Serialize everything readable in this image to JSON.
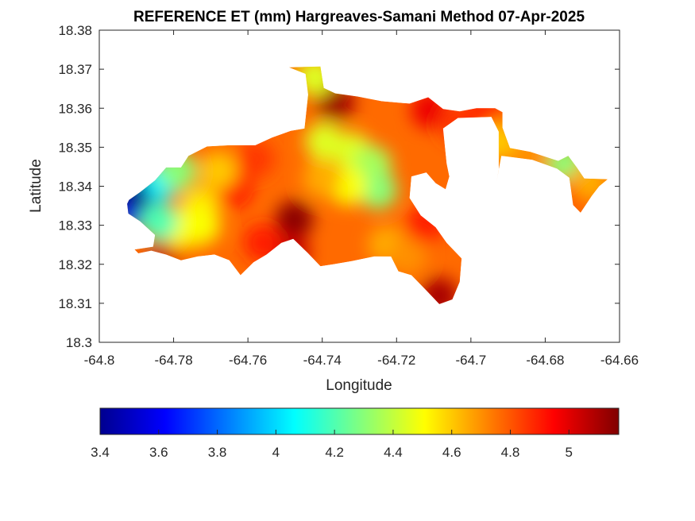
{
  "chart_data": {
    "type": "heatmap",
    "title": "REFERENCE ET (mm) Hargreaves-Samani Method  07-Apr-2025",
    "xlabel": "Longitude",
    "ylabel": "Latitude",
    "xlim": [
      -64.8,
      -64.66
    ],
    "ylim": [
      18.3,
      18.38
    ],
    "x_ticks": [
      "-64.8",
      "-64.78",
      "-64.76",
      "-64.74",
      "-64.72",
      "-64.7",
      "-64.68",
      "-64.66"
    ],
    "y_ticks": [
      "18.3",
      "18.31",
      "18.32",
      "18.33",
      "18.34",
      "18.35",
      "18.36",
      "18.37",
      "18.38"
    ],
    "colormap": "jet",
    "colorbar": {
      "placement": "bottom",
      "range": [
        3.4,
        5.17
      ],
      "ticks": [
        "3.4",
        "3.6",
        "3.8",
        "4",
        "4.2",
        "4.4",
        "4.6",
        "4.8",
        "5"
      ]
    },
    "colormap_stops": [
      "#00008f",
      "#0000ff",
      "#0080ff",
      "#00ffff",
      "#80ff80",
      "#ffff00",
      "#ff8000",
      "#ff0000",
      "#800000"
    ],
    "region_outline": [
      [
        -64.792,
        18.3365
      ],
      [
        -64.789,
        18.3385
      ],
      [
        -64.785,
        18.3415
      ],
      [
        -64.782,
        18.3448
      ],
      [
        -64.778,
        18.3448
      ],
      [
        -64.776,
        18.3478
      ],
      [
        -64.771,
        18.3502
      ],
      [
        -64.765,
        18.3505
      ],
      [
        -64.758,
        18.3505
      ],
      [
        -64.7535,
        18.3525
      ],
      [
        -64.7485,
        18.3542
      ],
      [
        -64.7448,
        18.3548
      ],
      [
        -64.7438,
        18.3635
      ],
      [
        -64.7445,
        18.3688
      ],
      [
        -64.749,
        18.3705
      ],
      [
        -64.7405,
        18.3707
      ],
      [
        -64.7396,
        18.3652
      ],
      [
        -64.7365,
        18.3638
      ],
      [
        -64.7305,
        18.363
      ],
      [
        -64.724,
        18.3618
      ],
      [
        -64.7165,
        18.3612
      ],
      [
        -64.7115,
        18.3628
      ],
      [
        -64.7075,
        18.3598
      ],
      [
        -64.703,
        18.3592
      ],
      [
        -64.6985,
        18.36
      ],
      [
        -64.6935,
        18.36
      ],
      [
        -64.6915,
        18.359
      ],
      [
        -64.6915,
        18.355
      ],
      [
        -64.6895,
        18.3498
      ],
      [
        -64.684,
        18.3488
      ],
      [
        -64.6765,
        18.3465
      ],
      [
        -64.6738,
        18.3478
      ],
      [
        -64.6715,
        18.3448
      ],
      [
        -64.6695,
        18.342
      ],
      [
        -64.6632,
        18.3418
      ],
      [
        -64.6655,
        18.34
      ],
      [
        -64.6675,
        18.3375
      ],
      [
        -64.6705,
        18.3332
      ],
      [
        -64.6725,
        18.3352
      ],
      [
        -64.6735,
        18.3422
      ],
      [
        -64.6768,
        18.3445
      ],
      [
        -64.6835,
        18.3468
      ],
      [
        -64.6918,
        18.3478
      ],
      [
        -64.6932,
        18.3408
      ],
      [
        -64.6925,
        18.344
      ],
      [
        -64.6925,
        18.354
      ],
      [
        -64.6945,
        18.3578
      ],
      [
        -64.7035,
        18.3575
      ],
      [
        -64.7075,
        18.3548
      ],
      [
        -64.7065,
        18.3458
      ],
      [
        -64.7058,
        18.3425
      ],
      [
        -64.7068,
        18.3392
      ],
      [
        -64.7095,
        18.3408
      ],
      [
        -64.712,
        18.3435
      ],
      [
        -64.716,
        18.3425
      ],
      [
        -64.7165,
        18.337
      ],
      [
        -64.7135,
        18.3325
      ],
      [
        -64.7095,
        18.3295
      ],
      [
        -64.7065,
        18.3255
      ],
      [
        -64.7025,
        18.3215
      ],
      [
        -64.703,
        18.3155
      ],
      [
        -64.705,
        18.311
      ],
      [
        -64.7085,
        18.3098
      ],
      [
        -64.7115,
        18.3128
      ],
      [
        -64.716,
        18.3172
      ],
      [
        -64.7195,
        18.3182
      ],
      [
        -64.7215,
        18.322
      ],
      [
        -64.726,
        18.322
      ],
      [
        -64.732,
        18.3208
      ],
      [
        -64.737,
        18.32
      ],
      [
        -64.7405,
        18.3195
      ],
      [
        -64.744,
        18.323
      ],
      [
        -64.7478,
        18.3265
      ],
      [
        -64.751,
        18.3255
      ],
      [
        -64.755,
        18.3225
      ],
      [
        -64.7585,
        18.3205
      ],
      [
        -64.762,
        18.3172
      ],
      [
        -64.765,
        18.321
      ],
      [
        -64.769,
        18.3225
      ],
      [
        -64.7735,
        18.322
      ],
      [
        -64.778,
        18.321
      ],
      [
        -64.782,
        18.3225
      ],
      [
        -64.786,
        18.3235
      ],
      [
        -64.7895,
        18.3228
      ],
      [
        -64.7905,
        18.3238
      ],
      [
        -64.7855,
        18.3245
      ],
      [
        -64.785,
        18.3275
      ],
      [
        -64.789,
        18.331
      ],
      [
        -64.7922,
        18.333
      ],
      [
        -64.7925,
        18.3355
      ]
    ],
    "heat_points": [
      {
        "lon": -64.7475,
        "lat": 18.3315,
        "v": 5.15
      },
      {
        "lon": -64.7365,
        "lat": 18.3615,
        "v": 5.12
      },
      {
        "lon": -64.7485,
        "lat": 18.323,
        "v": 5.05
      },
      {
        "lon": -64.7085,
        "lat": 18.3118,
        "v": 5.1
      },
      {
        "lon": -64.7125,
        "lat": 18.33,
        "v": 4.9
      },
      {
        "lon": -64.711,
        "lat": 18.3595,
        "v": 4.98
      },
      {
        "lon": -64.7035,
        "lat": 18.356,
        "v": 4.85
      },
      {
        "lon": -64.6965,
        "lat": 18.3588,
        "v": 4.88
      },
      {
        "lon": -64.764,
        "lat": 18.3395,
        "v": 4.92
      },
      {
        "lon": -64.758,
        "lat": 18.347,
        "v": 4.85
      },
      {
        "lon": -64.756,
        "lat": 18.3255,
        "v": 4.9
      },
      {
        "lon": -64.782,
        "lat": 18.3235,
        "v": 5.05
      },
      {
        "lon": -64.777,
        "lat": 18.3265,
        "v": 4.75
      },
      {
        "lon": -64.773,
        "lat": 18.335,
        "v": 4.55
      },
      {
        "lon": -64.768,
        "lat": 18.344,
        "v": 4.6
      },
      {
        "lon": -64.7785,
        "lat": 18.3295,
        "v": 4.5
      },
      {
        "lon": -64.7725,
        "lat": 18.33,
        "v": 4.5
      },
      {
        "lon": -64.7395,
        "lat": 18.3515,
        "v": 4.45
      },
      {
        "lon": -64.732,
        "lat": 18.349,
        "v": 4.45
      },
      {
        "lon": -64.7265,
        "lat": 18.3455,
        "v": 4.35
      },
      {
        "lon": -64.725,
        "lat": 18.339,
        "v": 4.3
      },
      {
        "lon": -64.733,
        "lat": 18.34,
        "v": 4.5
      },
      {
        "lon": -64.74,
        "lat": 18.342,
        "v": 4.65
      },
      {
        "lon": -64.7225,
        "lat": 18.325,
        "v": 4.65
      },
      {
        "lon": -64.717,
        "lat": 18.322,
        "v": 4.7
      },
      {
        "lon": -64.742,
        "lat": 18.368,
        "v": 4.45
      },
      {
        "lon": -64.788,
        "lat": 18.336,
        "v": 3.85
      },
      {
        "lon": -64.7915,
        "lat": 18.3345,
        "v": 3.6
      },
      {
        "lon": -64.7895,
        "lat": 18.338,
        "v": 3.4
      },
      {
        "lon": -64.783,
        "lat": 18.3415,
        "v": 4.05
      },
      {
        "lon": -64.779,
        "lat": 18.344,
        "v": 4.3
      },
      {
        "lon": -64.784,
        "lat": 18.331,
        "v": 4.2
      },
      {
        "lon": -64.6745,
        "lat": 18.3455,
        "v": 4.3
      },
      {
        "lon": -64.67,
        "lat": 18.3395,
        "v": 4.85
      },
      {
        "lon": -64.668,
        "lat": 18.341,
        "v": 4.65
      },
      {
        "lon": -64.6925,
        "lat": 18.3515,
        "v": 4.6
      },
      {
        "lon": -64.684,
        "lat": 18.348,
        "v": 4.7
      }
    ]
  }
}
